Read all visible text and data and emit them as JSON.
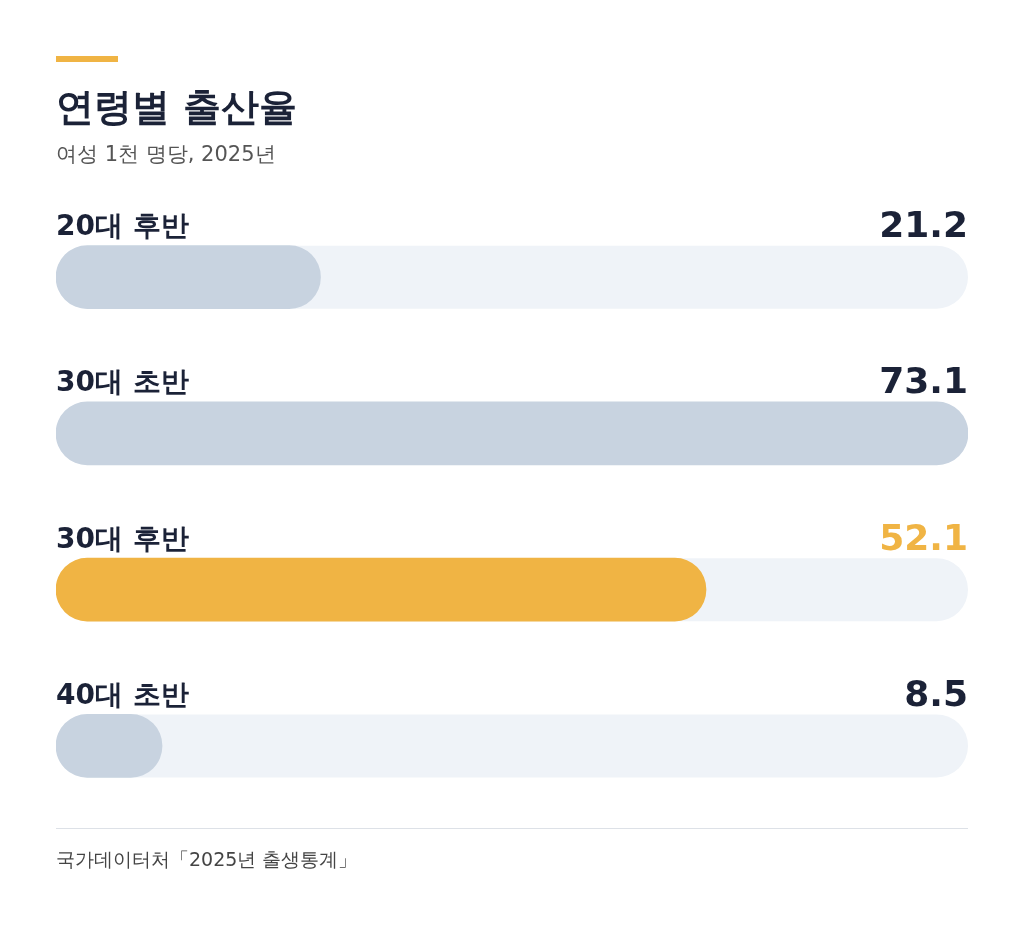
{
  "chart_data": {
    "type": "bar",
    "orientation": "horizontal",
    "title": "연령별 출산율",
    "subtitle": "여성 1천 명당, 2025년",
    "categories": [
      "20대 후반",
      "30대 초반",
      "30대 후반",
      "40대 초반"
    ],
    "values": [
      21.2,
      73.1,
      52.1,
      8.5
    ],
    "colors": [
      "#c8d3e0",
      "#c8d3e0",
      "#f0b444",
      "#c8d3e0"
    ],
    "data_labels": true,
    "legend": false,
    "annotations": [
      "국가데이터처「2025년 출생통계」"
    ]
  }
}
